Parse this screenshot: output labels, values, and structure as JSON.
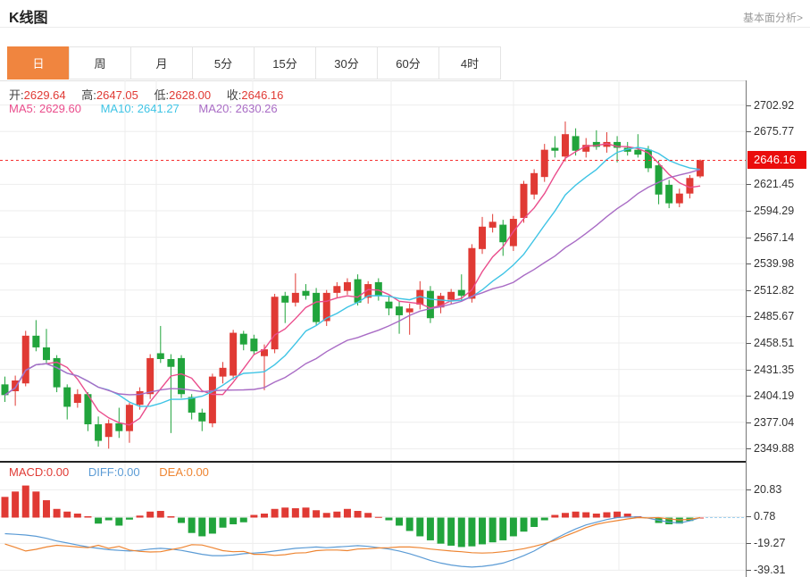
{
  "header": {
    "title": "K线图",
    "link": "基本面分析>"
  },
  "tabs": {
    "items": [
      "日",
      "周",
      "月",
      "5分",
      "15分",
      "30分",
      "60分",
      "4时"
    ],
    "active_index": 0
  },
  "ohlc": {
    "o_label": "开:",
    "o": "2629.64",
    "h_label": "高:",
    "h": "2647.05",
    "l_label": "低:",
    "l": "2628.00",
    "c_label": "收:",
    "c": "2646.16"
  },
  "ma": {
    "ma5_label": "MA5:",
    "ma5": "2629.60",
    "ma10_label": "MA10:",
    "ma10": "2641.27",
    "ma20_label": "MA20:",
    "ma20": "2630.26"
  },
  "macd_header": {
    "macd_label": "MACD:",
    "macd": "0.00",
    "diff_label": "DIFF:",
    "diff": "0.00",
    "dea_label": "DEA:",
    "dea": "0.00"
  },
  "price_badge": "2646.16",
  "colors": {
    "up": "#e03a34",
    "down": "#21a43c",
    "ma5": "#ea4d8c",
    "ma10": "#3fc4e5",
    "ma20": "#a96cc5",
    "diff": "#5b9bd5",
    "dea": "#ee8532",
    "grid": "#ededed",
    "separator": "#222",
    "last_price_line": "#f53030",
    "zero_dash": "#9fd0ee",
    "badge_bg": "#ea0d0c",
    "tab_active": "#f0853f",
    "axis_line": "#777",
    "axis_text": "#333"
  },
  "chart_data": {
    "type": "candlestick",
    "title": "K线图",
    "legend": [
      "MA5",
      "MA10",
      "MA20",
      "MACD",
      "DIFF",
      "DEA"
    ],
    "price_axis_ticks": [
      2702.92,
      2675.77,
      2621.45,
      2594.29,
      2567.14,
      2539.98,
      2512.82,
      2485.67,
      2458.51,
      2431.35,
      2404.19,
      2377.04,
      2349.88
    ],
    "macd_axis_ticks": [
      20.83,
      0.78,
      -19.27,
      -39.31
    ],
    "last_price": 2646.16,
    "ma_periods": [
      5,
      10,
      20
    ],
    "v_gridlines": [
      140,
      175,
      283,
      438,
      575,
      693
    ],
    "candles": [
      [
        2416,
        2424,
        2398,
        2405
      ],
      [
        2409,
        2425,
        2394,
        2420
      ],
      [
        2417,
        2471,
        2414,
        2466
      ],
      [
        2466,
        2482,
        2450,
        2454
      ],
      [
        2454,
        2473,
        2438,
        2441
      ],
      [
        2443,
        2446,
        2408,
        2413
      ],
      [
        2413,
        2416,
        2380,
        2393
      ],
      [
        2397,
        2411,
        2392,
        2406
      ],
      [
        2406,
        2408,
        2368,
        2375
      ],
      [
        2375,
        2383,
        2352,
        2358
      ],
      [
        2362,
        2380,
        2350,
        2376
      ],
      [
        2376,
        2392,
        2361,
        2368
      ],
      [
        2368,
        2397,
        2356,
        2395
      ],
      [
        2395,
        2413,
        2390,
        2409
      ],
      [
        2406,
        2447,
        2401,
        2443
      ],
      [
        2448,
        2476,
        2438,
        2442
      ],
      [
        2442,
        2447,
        2366,
        2434
      ],
      [
        2443,
        2446,
        2402,
        2406
      ],
      [
        2403,
        2406,
        2380,
        2387
      ],
      [
        2387,
        2391,
        2368,
        2378
      ],
      [
        2376,
        2427,
        2372,
        2424
      ],
      [
        2424,
        2439,
        2417,
        2433
      ],
      [
        2425,
        2472,
        2421,
        2469
      ],
      [
        2468,
        2471,
        2451,
        2457
      ],
      [
        2463,
        2467,
        2446,
        2450
      ],
      [
        2445,
        2457,
        2410,
        2452
      ],
      [
        2452,
        2509,
        2448,
        2506
      ],
      [
        2507,
        2511,
        2479,
        2500
      ],
      [
        2500,
        2530,
        2496,
        2510
      ],
      [
        2512,
        2519,
        2503,
        2507
      ],
      [
        2510,
        2515,
        2477,
        2480
      ],
      [
        2481,
        2513,
        2476,
        2510
      ],
      [
        2510,
        2521,
        2505,
        2517
      ],
      [
        2512,
        2525,
        2508,
        2521
      ],
      [
        2524,
        2529,
        2497,
        2500
      ],
      [
        2505,
        2522,
        2499,
        2519
      ],
      [
        2521,
        2525,
        2502,
        2507
      ],
      [
        2501,
        2506,
        2487,
        2494
      ],
      [
        2496,
        2501,
        2468,
        2487
      ],
      [
        2490,
        2499,
        2467,
        2494
      ],
      [
        2498,
        2522,
        2493,
        2513
      ],
      [
        2512,
        2517,
        2479,
        2484
      ],
      [
        2495,
        2510,
        2489,
        2507
      ],
      [
        2503,
        2514,
        2498,
        2511
      ],
      [
        2513,
        2529,
        2502,
        2507
      ],
      [
        2504,
        2560,
        2500,
        2556
      ],
      [
        2555,
        2588,
        2550,
        2578
      ],
      [
        2577,
        2591,
        2572,
        2583
      ],
      [
        2580,
        2585,
        2548,
        2562
      ],
      [
        2558,
        2589,
        2553,
        2586
      ],
      [
        2587,
        2625,
        2582,
        2622
      ],
      [
        2611,
        2637,
        2606,
        2633
      ],
      [
        2629,
        2663,
        2624,
        2657
      ],
      [
        2659,
        2671,
        2649,
        2656
      ],
      [
        2650,
        2686,
        2645,
        2673
      ],
      [
        2671,
        2679,
        2651,
        2656
      ],
      [
        2655,
        2669,
        2649,
        2662
      ],
      [
        2665,
        2677,
        2657,
        2660
      ],
      [
        2660,
        2675,
        2654,
        2665
      ],
      [
        2665,
        2671,
        2644,
        2659
      ],
      [
        2659,
        2665,
        2651,
        2655
      ],
      [
        2657,
        2673,
        2649,
        2652
      ],
      [
        2657,
        2661,
        2634,
        2638
      ],
      [
        2641,
        2646,
        2601,
        2611
      ],
      [
        2621,
        2626,
        2597,
        2602
      ],
      [
        2602,
        2617,
        2598,
        2612
      ],
      [
        2612,
        2631,
        2607,
        2628
      ],
      [
        2629.64,
        2647.05,
        2628.0,
        2646.16
      ]
    ],
    "macd_hist": [
      15.5,
      19.5,
      24,
      19.5,
      13,
      6.5,
      4.5,
      3,
      1,
      -4.5,
      -2,
      -6,
      -1.5,
      1.5,
      4.5,
      5,
      1,
      -4,
      -11.5,
      -14,
      -12,
      -7.5,
      -5,
      -3.5,
      2,
      3,
      6.5,
      7.5,
      7,
      7.5,
      5.5,
      3.5,
      4.5,
      6.5,
      5,
      3.5,
      0.5,
      -2,
      -6,
      -10,
      -14,
      -17,
      -19.5,
      -21,
      -22,
      -21.5,
      -20,
      -18.5,
      -17,
      -14,
      -10.5,
      -7,
      -2,
      2,
      3.5,
      4.5,
      4,
      3,
      4,
      4.5,
      3,
      1,
      -0.5,
      -4,
      -5,
      -4.5,
      -2.5,
      0
    ],
    "macd_diff": [
      -12,
      -12.5,
      -13,
      -14,
      -15.5,
      -17.5,
      -19,
      -20.5,
      -22,
      -23,
      -24,
      -24.5,
      -25,
      -24.5,
      -23.5,
      -23,
      -23.5,
      -24.5,
      -26,
      -27.5,
      -28.5,
      -28.5,
      -28,
      -27,
      -26.5,
      -26,
      -25,
      -24,
      -23,
      -22.5,
      -22,
      -22.5,
      -22,
      -21.5,
      -21,
      -21.5,
      -22.5,
      -23.5,
      -25,
      -27,
      -29.5,
      -32,
      -34,
      -35.5,
      -36.5,
      -37,
      -36.5,
      -35.5,
      -34,
      -31.5,
      -28.5,
      -25,
      -20.5,
      -16,
      -12,
      -8.5,
      -5.5,
      -3.5,
      -1.5,
      0,
      0.5,
      0.5,
      -0.5,
      -2,
      -3.5,
      -4,
      -2.5,
      0
    ]
  }
}
